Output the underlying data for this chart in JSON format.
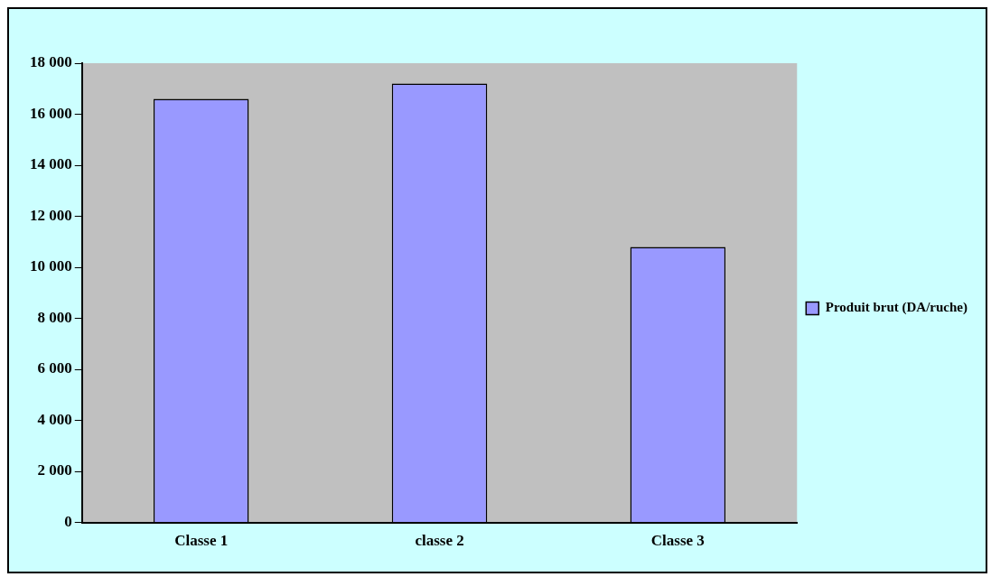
{
  "chart_data": {
    "type": "bar",
    "categories": [
      "Classe 1",
      "classe 2",
      "Classe 3"
    ],
    "series": [
      {
        "name": "Produit brut (DA/ruche)",
        "color": "#9999ff",
        "values": [
          16600,
          17200,
          10800
        ]
      }
    ],
    "ylim": [
      0,
      18000
    ],
    "yticks": [
      0,
      {
        "value": 2000,
        "label": "2 000"
      },
      {
        "value": 4000,
        "label": "4 000"
      },
      {
        "value": 6000,
        "label": "6 000"
      },
      {
        "value": 8000,
        "label": "8 000"
      },
      {
        "value": 10000,
        "label": "10 000"
      },
      {
        "value": 12000,
        "label": "12 000"
      },
      {
        "value": 14000,
        "label": "14 000"
      },
      {
        "value": 16000,
        "label": "16 000"
      },
      {
        "value": 18000,
        "label": "18 000"
      }
    ],
    "grid": false,
    "legend": "right"
  }
}
